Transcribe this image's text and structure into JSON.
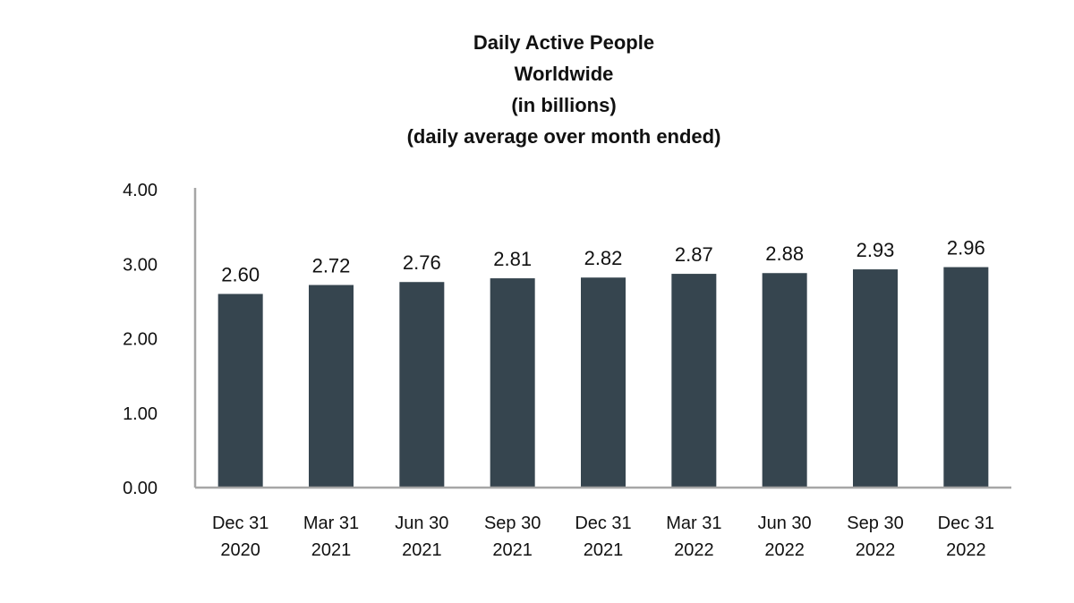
{
  "chart_data": {
    "type": "bar",
    "title_lines": [
      "Daily Active People",
      "Worldwide",
      "(in billions)",
      "(daily average over month ended)"
    ],
    "categories": [
      [
        "Dec 31",
        "2020"
      ],
      [
        "Mar 31",
        "2021"
      ],
      [
        "Jun 30",
        "2021"
      ],
      [
        "Sep 30",
        "2021"
      ],
      [
        "Dec 31",
        "2021"
      ],
      [
        "Mar 31",
        "2022"
      ],
      [
        "Jun 30",
        "2022"
      ],
      [
        "Sep 30",
        "2022"
      ],
      [
        "Dec 31",
        "2022"
      ]
    ],
    "values": [
      2.6,
      2.72,
      2.76,
      2.81,
      2.82,
      2.87,
      2.88,
      2.93,
      2.96
    ],
    "value_labels": [
      "2.60",
      "2.72",
      "2.76",
      "2.81",
      "2.82",
      "2.87",
      "2.88",
      "2.93",
      "2.96"
    ],
    "y_ticks": [
      "0.00",
      "1.00",
      "2.00",
      "3.00",
      "4.00"
    ],
    "ylim": [
      0,
      4
    ],
    "grid": false,
    "legend": "none",
    "bar_color": "#36454f",
    "axis_color": "#a6a6a6"
  }
}
